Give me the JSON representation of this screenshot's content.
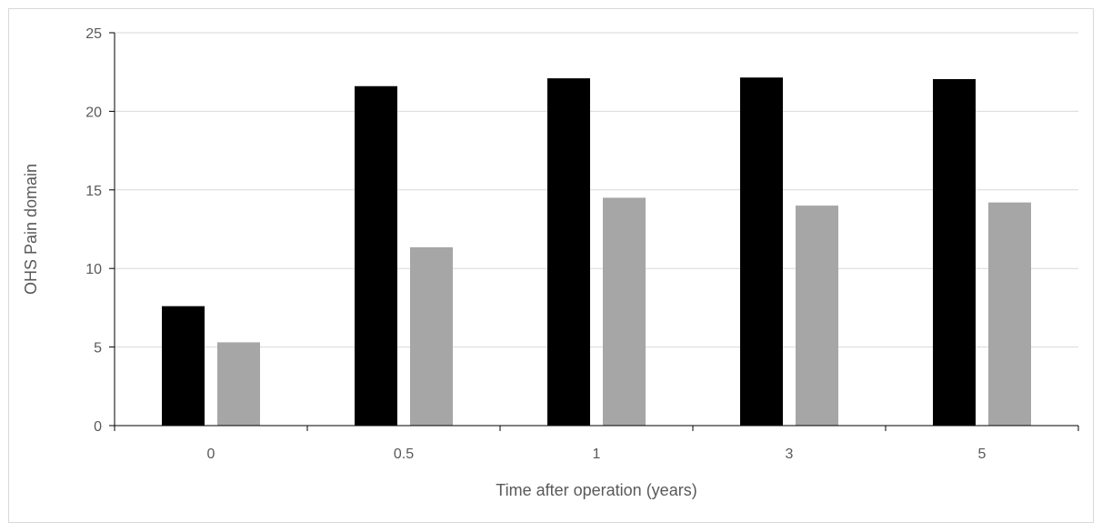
{
  "chart_data": {
    "type": "bar",
    "title": "",
    "xlabel": "Time after operation (years)",
    "ylabel": "OHS Pain domain",
    "categories": [
      "0",
      "0.5",
      "1",
      "3",
      "5"
    ],
    "series": [
      {
        "values": [
          7.6,
          21.6,
          22.1,
          22.15,
          22.05
        ],
        "color": "#000000"
      },
      {
        "values": [
          5.3,
          11.35,
          14.5,
          14.0,
          14.2
        ],
        "color": "#a6a6a6"
      }
    ],
    "ylim": [
      0,
      25
    ],
    "yticks": [
      0,
      5,
      10,
      15,
      20,
      25
    ],
    "grid": true,
    "legend": "none"
  }
}
